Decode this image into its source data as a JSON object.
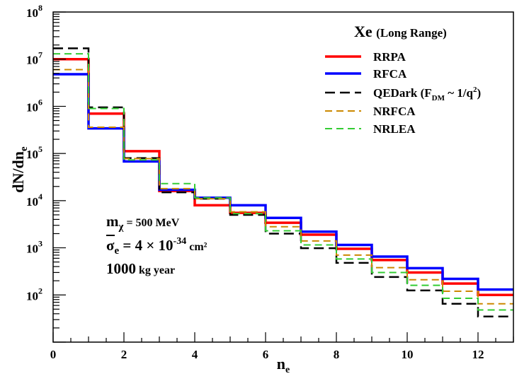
{
  "chart_data": {
    "type": "line",
    "style": "step-histogram",
    "ylabel": "dN/dn",
    "ylabel_sub": "e",
    "xlabel": "n",
    "xlabel_sub": "e",
    "xlim": [
      0,
      13
    ],
    "ylim_log10": [
      1,
      8
    ],
    "yscale": "log",
    "x_ticks": [
      "0",
      "2",
      "4",
      "6",
      "8",
      "10",
      "12"
    ],
    "y_ticks": [
      {
        "base": "10",
        "exp": "2"
      },
      {
        "base": "10",
        "exp": "3"
      },
      {
        "base": "10",
        "exp": "4"
      },
      {
        "base": "10",
        "exp": "5"
      },
      {
        "base": "10",
        "exp": "6"
      },
      {
        "base": "10",
        "exp": "7"
      },
      {
        "base": "10",
        "exp": "8"
      }
    ],
    "bin_edges": [
      0,
      1,
      2,
      3,
      4,
      5,
      6,
      7,
      8,
      9,
      10,
      11,
      12,
      13
    ],
    "legend": {
      "title": "Xe",
      "subtitle": "(Long Range)",
      "position": "top-right"
    },
    "series": [
      {
        "name": "RRPA",
        "label": "RRPA",
        "color": "#ff0000",
        "dash": "solid",
        "values": [
          10000000.0,
          700000.0,
          112000.0,
          16000.0,
          8000.0,
          5500.0,
          3400.0,
          1900.0,
          950.0,
          550.0,
          300.0,
          175.0,
          100.0
        ]
      },
      {
        "name": "RFCA",
        "label": "RFCA",
        "color": "#0000ff",
        "dash": "solid",
        "values": [
          4800000.0,
          340000.0,
          68000.0,
          17000.0,
          11500.0,
          8000.0,
          4300.0,
          2200.0,
          1150.0,
          650.0,
          370.0,
          220.0,
          130.0
        ]
      },
      {
        "name": "QEDark",
        "label_main": "QEDark (F",
        "label_sub": "DM",
        "label_mid": " ~ 1/q",
        "label_sup": "2",
        "label_end": ")",
        "color": "#000000",
        "dash": "longdash",
        "values": [
          17000000.0,
          950000.0,
          80000.0,
          15000.0,
          11000.0,
          5000.0,
          2000.0,
          980.0,
          480.0,
          240.0,
          125.0,
          65.0,
          35.0
        ]
      },
      {
        "name": "NRFCA",
        "label": "NRFCA",
        "color": "#cc8800",
        "dash": "dash",
        "values": [
          6000000.0,
          360000.0,
          78000.0,
          18000.0,
          11000.0,
          5800.0,
          2800.0,
          1400.0,
          700.0,
          380.0,
          210.0,
          120.0,
          65.0
        ]
      },
      {
        "name": "NRLEA",
        "label": "NRLEA",
        "color": "#33cc33",
        "dash": "dash",
        "values": [
          13000000.0,
          900000.0,
          73000.0,
          23000.0,
          11500.0,
          5300.0,
          2300.0,
          1150.0,
          580.0,
          300.0,
          160.0,
          85.0,
          48.0
        ]
      }
    ],
    "annotations": {
      "mass_symbol": "m",
      "mass_sub": "χ",
      "mass_value": " = 500 MeV",
      "sigma_symbol": "σ",
      "sigma_sub": "e",
      "sigma_value": " = 4 × 10",
      "sigma_exp": "-34",
      "sigma_unit": " cm²",
      "exposure_value": "1000",
      "exposure_unit": " kg year"
    }
  }
}
